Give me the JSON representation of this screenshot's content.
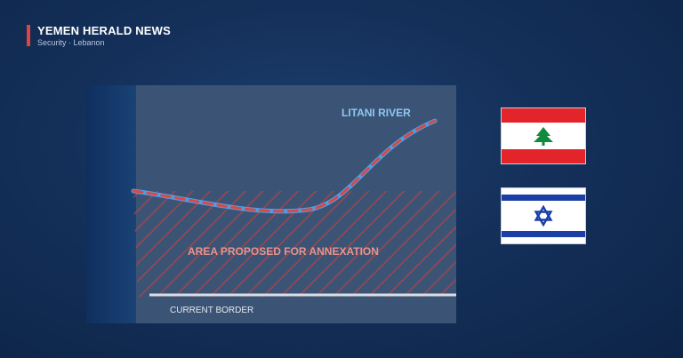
{
  "header": {
    "outlet_name": "YEMEN HERALD NEWS",
    "section": "Security · Lebanon",
    "accent_color": "#e0443e"
  },
  "map": {
    "river_label": "LITANI RIVER",
    "annexation_label": "AREA PROPOSED FOR ANNEXATION",
    "border_label": "CURRENT BORDER",
    "colors": {
      "sea": "#123465",
      "land": "#3b5475",
      "river": "#4f9ee8",
      "annexation": "#d64a45",
      "border": "#d9dee6",
      "river_label": "#8fc7f2",
      "annexation_label": "#e9948c"
    }
  },
  "flags": [
    {
      "name": "Lebanon",
      "icon": "cedar-tree-icon",
      "stripe_color": "#e3242b",
      "emblem_color": "#118a3e"
    },
    {
      "name": "Israel",
      "icon": "star-of-david-icon",
      "stripe_color": "#1b3fa6",
      "emblem_color": "#1b3fa6"
    }
  ]
}
